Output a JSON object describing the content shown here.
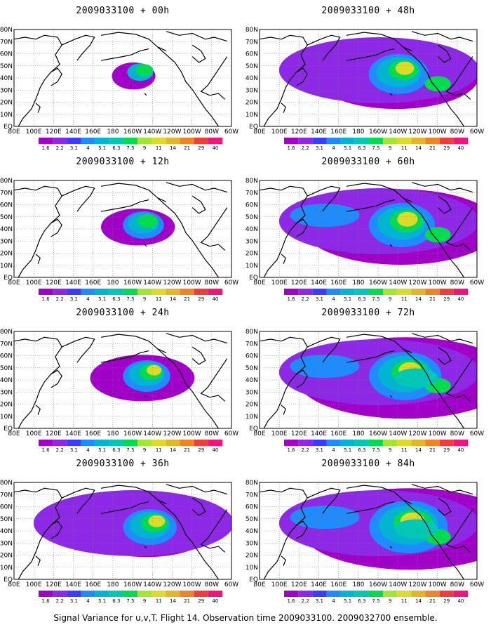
{
  "lat_labels": [
    "80N",
    "70N",
    "60N",
    "50N",
    "40N",
    "30N",
    "20N",
    "10N",
    "EQ"
  ],
  "lon_labels": [
    "80E",
    "100E",
    "120E",
    "140E",
    "160E",
    "180",
    "160W",
    "140W",
    "120W",
    "100W",
    "80W",
    "60W"
  ],
  "colorbar": {
    "labels": [
      "1.6",
      "2.2",
      "3.1",
      "4",
      "5.1",
      "6.3",
      "7.5",
      "9",
      "11",
      "14",
      "21",
      "29",
      "40"
    ],
    "colors": [
      "#a000c8",
      "#8c28e6",
      "#3c3cff",
      "#1e8cff",
      "#00b4d2",
      "#00c8b4",
      "#00dc50",
      "#a0e632",
      "#dcdc28",
      "#e6b428",
      "#f08228",
      "#f03c3c",
      "#f0147d"
    ]
  },
  "panels": [
    {
      "id": "p00",
      "title": "2009033100 + 00h",
      "level": 0
    },
    {
      "id": "p48",
      "title": "2009033100 + 48h",
      "level": 4
    },
    {
      "id": "p12",
      "title": "2009033100 + 12h",
      "level": 1
    },
    {
      "id": "p60",
      "title": "2009033100 + 60h",
      "level": 5
    },
    {
      "id": "p24",
      "title": "2009033100 + 24h",
      "level": 2
    },
    {
      "id": "p72",
      "title": "2009033100 + 72h",
      "level": 6
    },
    {
      "id": "p36",
      "title": "2009033100 + 36h",
      "level": 3
    },
    {
      "id": "p84",
      "title": "2009033100 + 84h",
      "level": 7
    }
  ],
  "caption": "Signal Variance for u,v,T. Flight 14. Observation time 2009033100. 2009032700 ensemble."
}
